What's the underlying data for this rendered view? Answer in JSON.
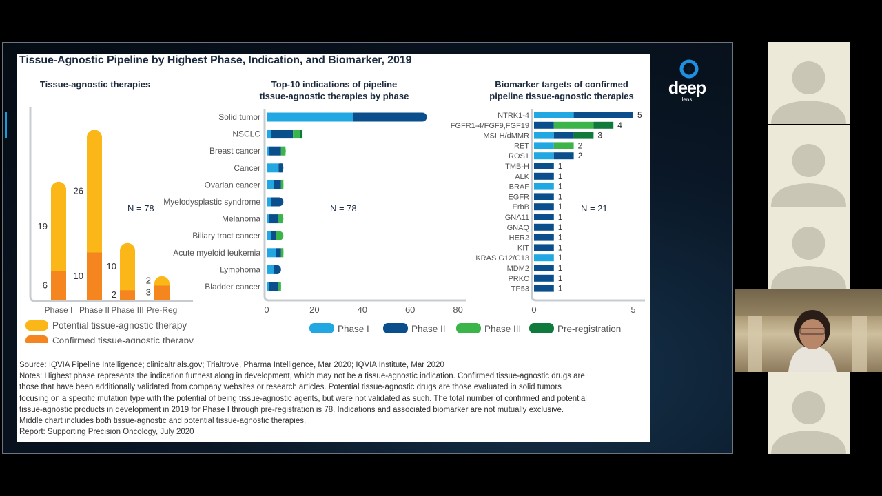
{
  "slide": {
    "title": "Tissue-Agnostic Pipeline by Highest Phase, Indication, and Biomarker, 2019",
    "left_chart": {
      "title": "Tissue-agnostic therapies",
      "n_label": "N = 78",
      "legend": [
        "Potential tissue-agnostic therapy",
        "Confirmed tissue-agnostic therapy"
      ]
    },
    "middle_chart": {
      "title_line1": "Top-10 indications of pipeline",
      "title_line2": "tissue-agnostic therapies by phase",
      "n_label": "N = 78"
    },
    "right_chart": {
      "title_line1": "Biomarker targets of confirmed",
      "title_line2": "pipeline tissue-agnostic therapies",
      "n_label": "N = 21"
    },
    "phase_legend": [
      "Phase I",
      "Phase II",
      "Phase III",
      "Pre-registration"
    ],
    "source": "Source: IQVIA Pipeline Intelligence; clinicaltrials.gov; Trialtrove, Pharma Intelligence, Mar 2020; IQVIA Institute, Mar 2020",
    "notes": [
      "Notes: Highest phase represents the indication furthest along in development, which may not be a tissue-agnostic indication. Confirmed tissue-agnostic drugs are",
      "those that have been additionally validated from company websites or research articles. Potential tissue-agnostic drugs are those evaluated in solid tumors",
      "focusing on a specific mutation type with the potential of being tissue-agnostic agents, but were not validated as such. The total number of confirmed and potential",
      "tissue-agnostic products in development in 2019 for Phase I through pre-registration is 78. Indications and associated biomarker are not mutually exclusive.",
      "Middle chart includes both tissue-agnostic and potential tissue-agnostic therapies."
    ],
    "report": "Report: Supporting Precision Oncology, July 2020"
  },
  "logo": {
    "word": "deep",
    "sub": "lens"
  },
  "colors": {
    "potential": "#fbb717",
    "confirmed": "#f5861f",
    "phase1": "#21a7e1",
    "phase2": "#0a4f8c",
    "phase3": "#3bb54a",
    "prereg": "#0f7a3b"
  },
  "chart_data": [
    {
      "type": "bar",
      "stacked": true,
      "title": "Tissue-agnostic therapies",
      "categories": [
        "Phase I",
        "Phase II",
        "Phase III",
        "Pre-Reg"
      ],
      "series": [
        {
          "name": "Confirmed tissue-agnostic therapy",
          "values": [
            6,
            10,
            2,
            3
          ]
        },
        {
          "name": "Potential tissue-agnostic therapy",
          "values": [
            19,
            26,
            10,
            2
          ]
        }
      ],
      "ylim": [
        0,
        40
      ]
    },
    {
      "type": "bar",
      "orientation": "horizontal",
      "stacked": true,
      "title": "Top-10 indications of pipeline tissue-agnostic therapies by phase",
      "categories": [
        "Solid tumor",
        "NSCLC",
        "Breast cancer",
        "Cancer",
        "Ovarian cancer",
        "Myelodysplastic syndrome",
        "Melanoma",
        "Biliary tract cancer",
        "Acute myeloid leukemia",
        "Lymphoma",
        "Bladder cancer"
      ],
      "series": [
        {
          "name": "Phase I",
          "values": [
            36,
            2,
            1,
            5,
            3,
            2,
            1,
            2,
            4,
            3,
            1
          ]
        },
        {
          "name": "Phase II",
          "values": [
            31,
            9,
            5,
            2,
            3,
            5,
            4,
            2,
            2,
            3,
            4
          ]
        },
        {
          "name": "Phase III",
          "values": [
            0,
            3,
            2,
            0,
            1,
            0,
            2,
            3,
            1,
            0,
            1
          ]
        },
        {
          "name": "Pre-registration",
          "values": [
            0,
            1,
            0,
            0,
            0,
            0,
            0,
            0,
            0,
            0,
            0
          ]
        }
      ],
      "xlim": [
        0,
        80
      ],
      "xticks": [
        0,
        20,
        40,
        60,
        80
      ]
    },
    {
      "type": "bar",
      "orientation": "horizontal",
      "stacked": true,
      "title": "Biomarker targets of confirmed pipeline tissue-agnostic therapies",
      "categories": [
        "NTRK1-4",
        "FGFR1-4/FGF9,FGF19",
        "MSI-H/dMMR",
        "RET",
        "ROS1",
        "TMB-H",
        "ALK",
        "BRAF",
        "EGFR",
        "ErbB",
        "GNA11",
        "GNAQ",
        "HER2",
        "KIT",
        "KRAS G12/G13",
        "MDM2",
        "PRKC",
        "TP53"
      ],
      "totals": [
        5,
        4,
        3,
        2,
        2,
        1,
        1,
        1,
        1,
        1,
        1,
        1,
        1,
        1,
        1,
        1,
        1,
        1
      ],
      "series": [
        {
          "name": "Phase I",
          "values": [
            2,
            0,
            1,
            1,
            1,
            0,
            0,
            1,
            0,
            0,
            0,
            0,
            0,
            0,
            1,
            0,
            0,
            0
          ]
        },
        {
          "name": "Phase II",
          "values": [
            3,
            1,
            1,
            0,
            1,
            1,
            1,
            0,
            1,
            1,
            1,
            1,
            1,
            1,
            0,
            1,
            1,
            1
          ]
        },
        {
          "name": "Phase III",
          "values": [
            0,
            2,
            0,
            1,
            0,
            0,
            0,
            0,
            0,
            0,
            0,
            0,
            0,
            0,
            0,
            0,
            0,
            0
          ]
        },
        {
          "name": "Pre-registration",
          "values": [
            0,
            1,
            1,
            0,
            0,
            0,
            0,
            0,
            0,
            0,
            0,
            0,
            0,
            0,
            0,
            0,
            0,
            0
          ]
        }
      ],
      "xlim": [
        0,
        5
      ],
      "xticks": [
        0,
        5
      ]
    }
  ]
}
